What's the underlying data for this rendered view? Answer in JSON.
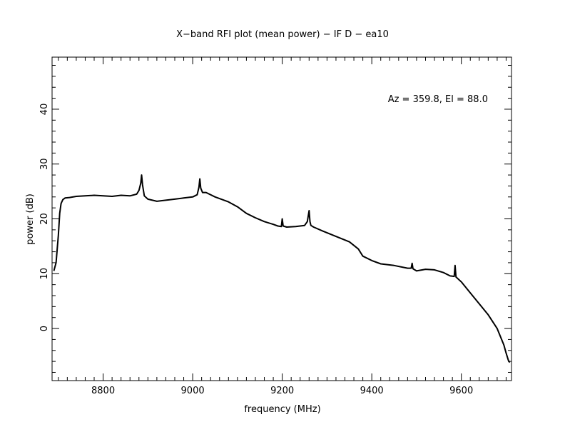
{
  "chart_data": {
    "type": "line",
    "title": "X−band RFI plot (mean power) − IF D − ea10",
    "xlabel": "frequency (MHz)",
    "ylabel": "power (dB)",
    "annotation": "Az = 359.8, El = 88.0",
    "xlim": [
      8686,
      9712
    ],
    "ylim": [
      -9.5,
      49.5
    ],
    "x_ticks": [
      8800,
      9000,
      9200,
      9400,
      9600
    ],
    "y_ticks": [
      0,
      10,
      20,
      30,
      40
    ],
    "x_tick_labels": [
      "8800",
      "9000",
      "9200",
      "9400",
      "9600"
    ],
    "y_tick_labels": [
      "0",
      "10",
      "20",
      "30",
      "40"
    ],
    "grid": false,
    "line_color": "#000000",
    "series": [
      {
        "x": [
          8690,
          8695,
          8700,
          8703,
          8706,
          8710,
          8715,
          8725,
          8740,
          8760,
          8780,
          8800,
          8820,
          8840,
          8860,
          8875,
          8880,
          8884,
          8886,
          8888,
          8892,
          8900,
          8920,
          8940,
          8960,
          8980,
          9000,
          9010,
          9014,
          9016,
          9018,
          9022,
          9030,
          9050,
          9080,
          9100,
          9120,
          9140,
          9160,
          9180,
          9190,
          9198,
          9200,
          9202,
          9210,
          9230,
          9250,
          9256,
          9260,
          9262,
          9264,
          9270,
          9290,
          9320,
          9350,
          9370,
          9380,
          9400,
          9420,
          9450,
          9480,
          9488,
          9490,
          9492,
          9500,
          9520,
          9540,
          9560,
          9575,
          9584,
          9586,
          9588,
          9600,
          9620,
          9640,
          9660,
          9680,
          9695,
          9700,
          9705,
          9708
        ],
        "y": [
          10.5,
          12,
          17,
          21,
          22.8,
          23.5,
          23.8,
          23.9,
          24.1,
          24.2,
          24.3,
          24.2,
          24.1,
          24.3,
          24.2,
          24.5,
          25.2,
          26.5,
          28.0,
          26.2,
          24.2,
          23.6,
          23.2,
          23.4,
          23.6,
          23.8,
          24.0,
          24.4,
          25.8,
          27.3,
          25.6,
          24.8,
          24.8,
          24.0,
          23.1,
          22.2,
          21.0,
          20.2,
          19.5,
          19.0,
          18.7,
          18.6,
          20.0,
          18.7,
          18.5,
          18.6,
          18.8,
          19.5,
          21.5,
          19.5,
          18.8,
          18.5,
          17.8,
          16.8,
          15.8,
          14.5,
          13.2,
          12.4,
          11.8,
          11.5,
          11.0,
          11.0,
          11.9,
          10.9,
          10.5,
          10.8,
          10.7,
          10.2,
          9.6,
          9.5,
          11.5,
          9.4,
          8.5,
          6.5,
          4.5,
          2.5,
          0.0,
          -3.0,
          -4.5,
          -5.8,
          -6.2
        ]
      }
    ]
  }
}
